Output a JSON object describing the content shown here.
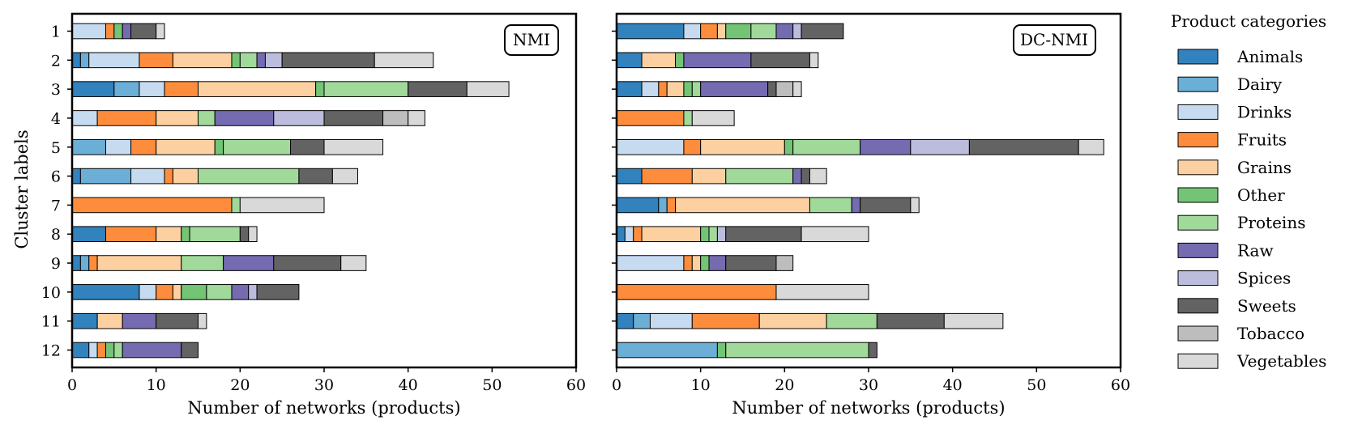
{
  "chart_data": [
    {
      "type": "bar",
      "orientation": "horizontal",
      "stacked": true,
      "tag": "NMI",
      "xlabel": "Number of networks (products)",
      "ylabel": "Cluster labels",
      "xlim": [
        0,
        60
      ],
      "xticks": [
        "0",
        "10",
        "20",
        "30",
        "40",
        "50",
        "60"
      ],
      "categories": [
        "1",
        "2",
        "3",
        "4",
        "5",
        "6",
        "7",
        "8",
        "9",
        "10",
        "11",
        "12"
      ],
      "series": [
        {
          "name": "Animals",
          "values": [
            0,
            1,
            5,
            0,
            0,
            1,
            0,
            4,
            1,
            8,
            3,
            2
          ]
        },
        {
          "name": "Dairy",
          "values": [
            0,
            1,
            3,
            0,
            4,
            6,
            0,
            0,
            1,
            0,
            0,
            0
          ]
        },
        {
          "name": "Drinks",
          "values": [
            4,
            6,
            3,
            3,
            3,
            4,
            0,
            0,
            0,
            2,
            0,
            1
          ]
        },
        {
          "name": "Fruits",
          "values": [
            1,
            4,
            4,
            7,
            3,
            1,
            19,
            6,
            1,
            2,
            0,
            1
          ]
        },
        {
          "name": "Grains",
          "values": [
            0,
            7,
            14,
            5,
            7,
            3,
            0,
            3,
            10,
            1,
            3,
            0
          ]
        },
        {
          "name": "Other",
          "values": [
            1,
            1,
            1,
            0,
            1,
            0,
            0,
            1,
            0,
            3,
            0,
            1
          ]
        },
        {
          "name": "Proteins",
          "values": [
            0,
            2,
            10,
            2,
            8,
            12,
            1,
            6,
            5,
            3,
            0,
            1
          ]
        },
        {
          "name": "Raw",
          "values": [
            1,
            1,
            0,
            7,
            0,
            0,
            0,
            0,
            6,
            2,
            4,
            7
          ]
        },
        {
          "name": "Spices",
          "values": [
            0,
            2,
            0,
            6,
            0,
            0,
            0,
            0,
            0,
            1,
            0,
            0
          ]
        },
        {
          "name": "Sweets",
          "values": [
            3,
            11,
            7,
            7,
            4,
            4,
            0,
            1,
            8,
            5,
            5,
            2
          ]
        },
        {
          "name": "Tobacco",
          "values": [
            0,
            0,
            0,
            3,
            0,
            0,
            0,
            0,
            0,
            0,
            0,
            0
          ]
        },
        {
          "name": "Vegetables",
          "values": [
            1,
            7,
            5,
            2,
            7,
            3,
            10,
            1,
            3,
            0,
            1,
            0
          ]
        }
      ]
    },
    {
      "type": "bar",
      "orientation": "horizontal",
      "stacked": true,
      "tag": "DC-NMI",
      "xlabel": "Number of networks (products)",
      "ylabel": "",
      "xlim": [
        0,
        60
      ],
      "xticks": [
        "0",
        "10",
        "20",
        "30",
        "40",
        "50",
        "60"
      ],
      "categories": [
        "1",
        "2",
        "3",
        "4",
        "5",
        "6",
        "7",
        "8",
        "9",
        "10",
        "11",
        "12"
      ],
      "series": [
        {
          "name": "Animals",
          "values": [
            8,
            3,
            3,
            0,
            0,
            3,
            5,
            1,
            0,
            0,
            2,
            0
          ]
        },
        {
          "name": "Dairy",
          "values": [
            0,
            0,
            0,
            0,
            0,
            0,
            1,
            0,
            0,
            0,
            2,
            12
          ]
        },
        {
          "name": "Drinks",
          "values": [
            2,
            0,
            2,
            0,
            8,
            0,
            0,
            1,
            8,
            0,
            5,
            0
          ]
        },
        {
          "name": "Fruits",
          "values": [
            2,
            0,
            1,
            8,
            2,
            6,
            1,
            1,
            1,
            19,
            8,
            0
          ]
        },
        {
          "name": "Grains",
          "values": [
            1,
            4,
            2,
            0,
            10,
            4,
            16,
            7,
            1,
            0,
            8,
            0
          ]
        },
        {
          "name": "Other",
          "values": [
            3,
            1,
            1,
            0,
            1,
            0,
            0,
            1,
            1,
            0,
            0,
            1
          ]
        },
        {
          "name": "Proteins",
          "values": [
            3,
            0,
            1,
            1,
            8,
            8,
            5,
            1,
            0,
            0,
            6,
            17
          ]
        },
        {
          "name": "Raw",
          "values": [
            2,
            8,
            8,
            0,
            6,
            1,
            1,
            0,
            2,
            0,
            0,
            0
          ]
        },
        {
          "name": "Spices",
          "values": [
            1,
            0,
            0,
            0,
            7,
            0,
            0,
            1,
            0,
            0,
            0,
            0
          ]
        },
        {
          "name": "Sweets",
          "values": [
            5,
            7,
            1,
            0,
            13,
            1,
            6,
            9,
            6,
            0,
            8,
            1
          ]
        },
        {
          "name": "Tobacco",
          "values": [
            0,
            0,
            2,
            0,
            0,
            0,
            0,
            0,
            2,
            0,
            0,
            0
          ]
        },
        {
          "name": "Vegetables",
          "values": [
            0,
            1,
            1,
            5,
            3,
            2,
            1,
            8,
            0,
            11,
            7,
            0
          ]
        }
      ]
    }
  ],
  "legend": {
    "title": "Product categories",
    "items": [
      {
        "name": "Animals",
        "color": "#3182bd"
      },
      {
        "name": "Dairy",
        "color": "#6baed6"
      },
      {
        "name": "Drinks",
        "color": "#c6dbef"
      },
      {
        "name": "Fruits",
        "color": "#fd8d3c"
      },
      {
        "name": "Grains",
        "color": "#fdd0a2"
      },
      {
        "name": "Other",
        "color": "#74c476"
      },
      {
        "name": "Proteins",
        "color": "#a1d99b"
      },
      {
        "name": "Raw",
        "color": "#756bb1"
      },
      {
        "name": "Spices",
        "color": "#bcbddc"
      },
      {
        "name": "Sweets",
        "color": "#636363"
      },
      {
        "name": "Tobacco",
        "color": "#bdbdbd"
      },
      {
        "name": "Vegetables",
        "color": "#d9d9d9"
      }
    ]
  }
}
